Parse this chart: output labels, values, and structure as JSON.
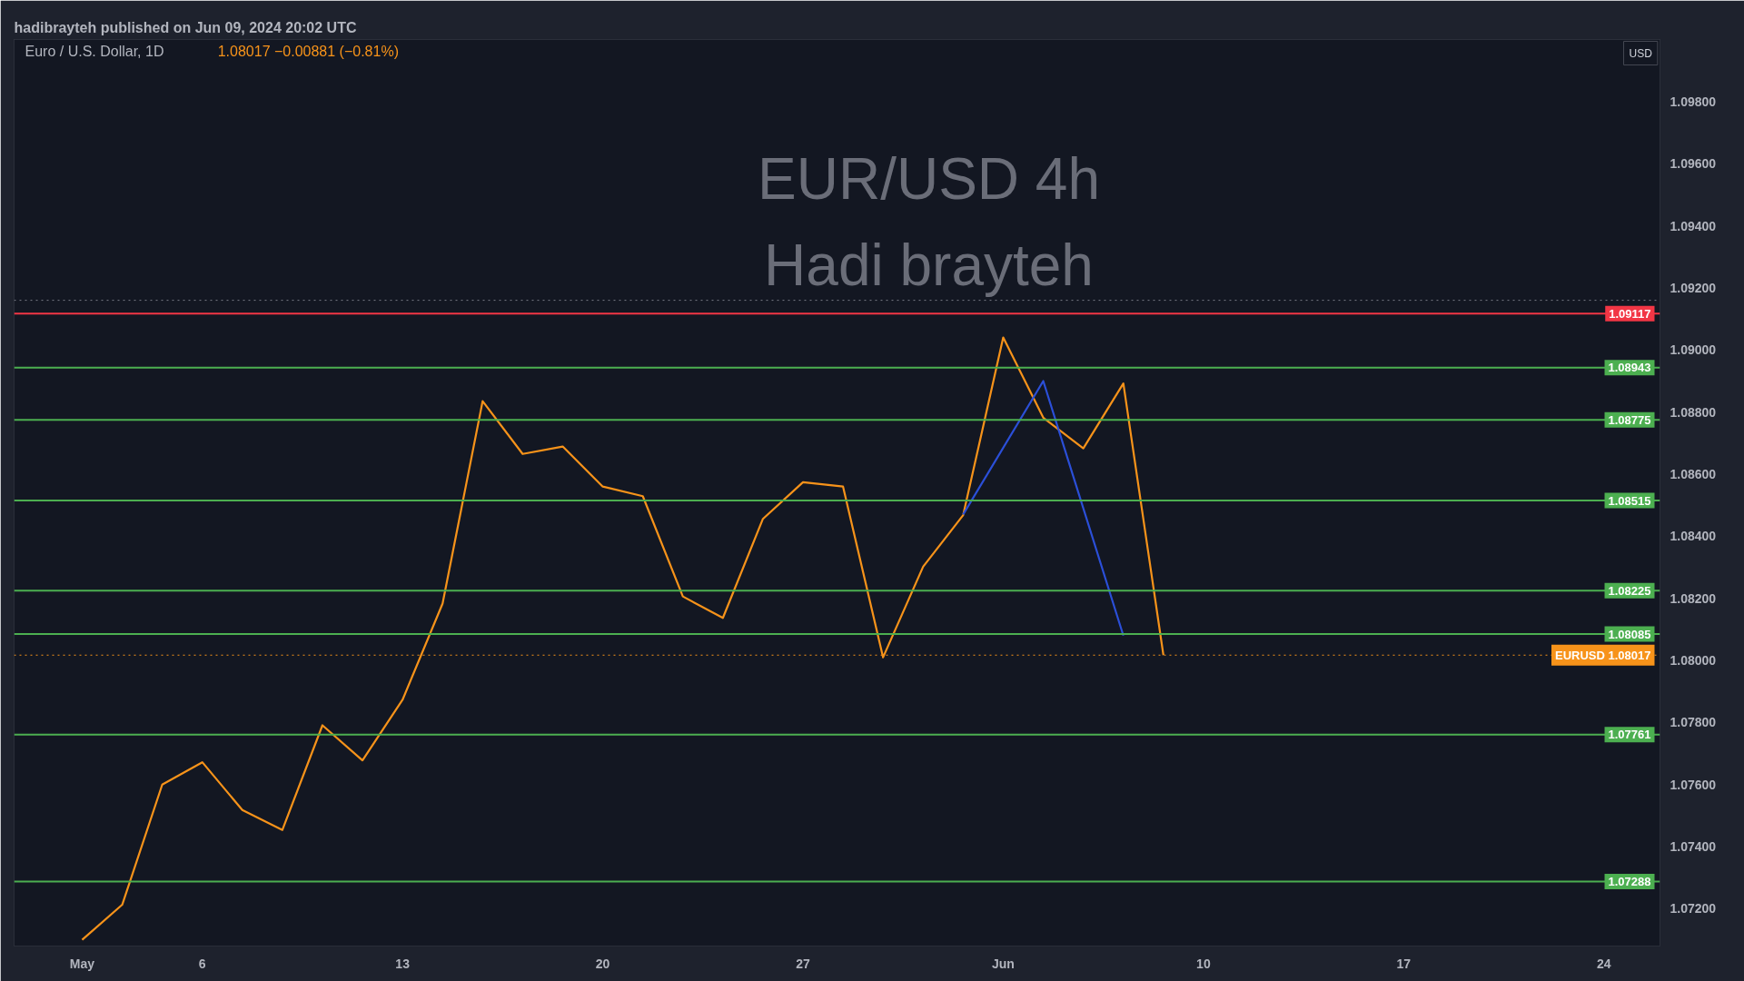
{
  "chart_data": {
    "type": "line",
    "title": "EUR/USD 4h",
    "subtitle": "Hadi brayteh",
    "annotations": [
      "hadibrayteh published on Jun 09, 2024 20:02 UTC",
      "Euro / U.S. Dollar, 1D",
      "1.08017  −0.00881 (−0.81%)",
      "USD"
    ],
    "categories": [
      "May",
      null,
      null,
      "6",
      null,
      null,
      null,
      null,
      "13",
      null,
      null,
      null,
      null,
      "20",
      null,
      null,
      null,
      null,
      "27",
      null,
      null,
      null,
      null,
      "Jun",
      null,
      null,
      null,
      null,
      "10",
      null,
      null,
      null,
      null,
      "17",
      null,
      null,
      null,
      null,
      "24",
      null
    ],
    "series": [
      {
        "color": "#f7931a",
        "values": [
          1.071,
          1.07213,
          1.076,
          1.07672,
          1.07518,
          1.07454,
          1.07791,
          1.07678,
          1.07873,
          1.08183,
          1.08835,
          1.08665,
          1.08689,
          1.0856,
          1.08529,
          1.08206,
          1.08137,
          1.08456,
          1.08574,
          1.0856,
          1.0801,
          1.08302,
          1.08468,
          1.0904,
          1.08782,
          1.08683,
          1.08892,
          1.08017,
          null,
          null,
          null,
          null,
          null,
          null,
          null,
          null,
          null,
          null,
          null,
          null
        ]
      },
      {
        "color": "#2b4fd8",
        "values": [
          null,
          null,
          null,
          null,
          null,
          null,
          null,
          null,
          null,
          null,
          null,
          null,
          null,
          null,
          null,
          null,
          null,
          null,
          null,
          null,
          null,
          null,
          1.0847,
          null,
          1.089,
          null,
          1.0808,
          null,
          null,
          null,
          null,
          null,
          null,
          null,
          null,
          null,
          null,
          null,
          null,
          null
        ]
      }
    ],
    "ylim": [
      1.0708,
      1.1
    ],
    "yticks": [
      {
        "value": 1.072,
        "label": "1.07200"
      },
      {
        "value": 1.074,
        "label": "1.07400"
      },
      {
        "value": 1.076,
        "label": "1.07600"
      },
      {
        "value": 1.078,
        "label": "1.07800"
      },
      {
        "value": 1.08,
        "label": "1.08000"
      },
      {
        "value": 1.082,
        "label": "1.08200"
      },
      {
        "value": 1.084,
        "label": "1.08400"
      },
      {
        "value": 1.086,
        "label": "1.08600"
      },
      {
        "value": 1.088,
        "label": "1.08800"
      },
      {
        "value": 1.09,
        "label": "1.09000"
      },
      {
        "value": 1.092,
        "label": "1.09200"
      },
      {
        "value": 1.094,
        "label": "1.09400"
      },
      {
        "value": 1.096,
        "label": "1.09600"
      },
      {
        "value": 1.098,
        "label": "1.09800"
      }
    ],
    "ref_lines": [
      {
        "axis": "y",
        "value": 1.0916,
        "color": "#787b86",
        "line_style": "dotted"
      },
      {
        "axis": "y",
        "value": 1.09117,
        "label": "1.09117",
        "color": "#f23645",
        "line_style": "solid"
      },
      {
        "axis": "y",
        "value": 1.08943,
        "label": "1.08943",
        "color": "#4caf50",
        "line_style": "solid"
      },
      {
        "axis": "y",
        "value": 1.08775,
        "label": "1.08775",
        "color": "#4caf50",
        "line_style": "solid"
      },
      {
        "axis": "y",
        "value": 1.08515,
        "label": "1.08515",
        "color": "#4caf50",
        "line_style": "solid"
      },
      {
        "axis": "y",
        "value": 1.08225,
        "label": "1.08225",
        "color": "#4caf50",
        "line_style": "solid"
      },
      {
        "axis": "y",
        "value": 1.08085,
        "label": "1.08085",
        "color": "#4caf50",
        "line_style": "solid"
      },
      {
        "axis": "y",
        "value": 1.08017,
        "label": "EURUSD 1.08017",
        "color": "#f7931a",
        "line_style": "dotted"
      },
      {
        "axis": "y",
        "value": 1.07761,
        "label": "1.07761",
        "color": "#4caf50",
        "line_style": "solid"
      },
      {
        "axis": "y",
        "value": 1.07288,
        "label": "1.07288",
        "color": "#4caf50",
        "line_style": "solid"
      }
    ],
    "grid": false,
    "marker": "none",
    "line_style": "solid"
  }
}
